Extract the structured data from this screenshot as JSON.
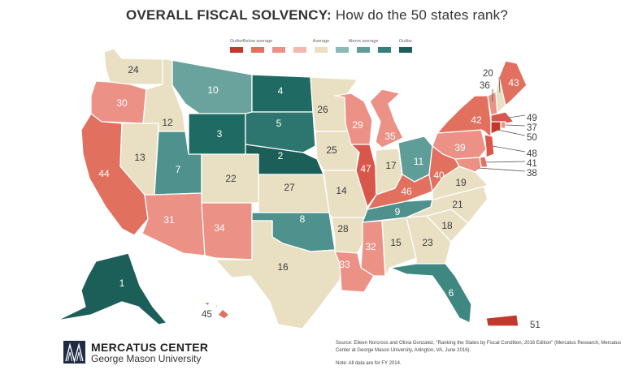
{
  "title": {
    "bold": "OVERALL FISCAL SOLVENCY:",
    "rest": "How do the 50 states rank?"
  },
  "legend": [
    {
      "label": "Outlier",
      "color": "#c0392b"
    },
    {
      "label": "Below average",
      "color": "#e2705f"
    },
    {
      "label": "",
      "color": "#eb9186"
    },
    {
      "label": "",
      "color": "#f3b9ae"
    },
    {
      "label": "Average",
      "color": "#e9dfc2"
    },
    {
      "label": "",
      "color": "#8cb9b5"
    },
    {
      "label": "Above average",
      "color": "#5e9d98"
    },
    {
      "label": "",
      "color": "#357f79"
    },
    {
      "label": "Outlier",
      "color": "#1c5e58"
    }
  ],
  "states": {
    "WA": {
      "rank": "24",
      "color": "#e9dfc2"
    },
    "OR": {
      "rank": "30",
      "color": "#eb9186"
    },
    "CA": {
      "rank": "44",
      "color": "#e2705f"
    },
    "NV": {
      "rank": "13",
      "color": "#e9dfc2"
    },
    "ID": {
      "rank": "12",
      "color": "#e9dfc2"
    },
    "MT": {
      "rank": "10",
      "color": "#6aa39e"
    },
    "WY": {
      "rank": "3",
      "color": "#1f6b64"
    },
    "UT": {
      "rank": "7",
      "color": "#4f928d"
    },
    "AZ": {
      "rank": "31",
      "color": "#eb9186"
    },
    "CO": {
      "rank": "22",
      "color": "#e9dfc2"
    },
    "NM": {
      "rank": "34",
      "color": "#eb9186"
    },
    "ND": {
      "rank": "4",
      "color": "#1f6b64"
    },
    "SD": {
      "rank": "5",
      "color": "#2c766f"
    },
    "NE": {
      "rank": "2",
      "color": "#1c5e58"
    },
    "KS": {
      "rank": "27",
      "color": "#e9dfc2"
    },
    "OK": {
      "rank": "8",
      "color": "#4f928d"
    },
    "TX": {
      "rank": "16",
      "color": "#e9dfc2"
    },
    "MN": {
      "rank": "26",
      "color": "#e9dfc2"
    },
    "IA": {
      "rank": "25",
      "color": "#e9dfc2"
    },
    "MO": {
      "rank": "14",
      "color": "#e9dfc2"
    },
    "AR": {
      "rank": "28",
      "color": "#e9dfc2"
    },
    "LA": {
      "rank": "33",
      "color": "#eb9186"
    },
    "WI": {
      "rank": "29",
      "color": "#eb9186"
    },
    "IL": {
      "rank": "47",
      "color": "#d9574a"
    },
    "MI": {
      "rank": "35",
      "color": "#eb9186"
    },
    "IN": {
      "rank": "17",
      "color": "#e9dfc2"
    },
    "OH": {
      "rank": "11",
      "color": "#5e9d98"
    },
    "KY": {
      "rank": "46",
      "color": "#e2705f"
    },
    "TN": {
      "rank": "9",
      "color": "#4f928d"
    },
    "MS": {
      "rank": "32",
      "color": "#eb9186"
    },
    "AL": {
      "rank": "15",
      "color": "#e9dfc2"
    },
    "GA": {
      "rank": "23",
      "color": "#e9dfc2"
    },
    "FL": {
      "rank": "6",
      "color": "#3f8882"
    },
    "SC": {
      "rank": "18",
      "color": "#e9dfc2"
    },
    "NC": {
      "rank": "21",
      "color": "#e9dfc2"
    },
    "VA": {
      "rank": "19",
      "color": "#e9dfc2"
    },
    "WV": {
      "rank": "40",
      "color": "#e2705f"
    },
    "PA": {
      "rank": "39",
      "color": "#eb9186"
    },
    "NY": {
      "rank": "42",
      "color": "#e2705f"
    },
    "ME": {
      "rank": "43",
      "color": "#e2705f"
    },
    "VT": {
      "rank": "36",
      "color": "#eb9186"
    },
    "NH": {
      "rank": "20",
      "color": "#e9dfc2"
    },
    "MA": {
      "rank": "49",
      "color": "#d9574a"
    },
    "RI": {
      "rank": "37",
      "color": "#eb9186"
    },
    "CT": {
      "rank": "50",
      "color": "#c0392b"
    },
    "NJ": {
      "rank": "48",
      "color": "#d9574a"
    },
    "DE": {
      "rank": "41",
      "color": "#e2705f"
    },
    "MD": {
      "rank": "38",
      "color": "#eb9186"
    },
    "AK": {
      "rank": "1",
      "color": "#1c5e58"
    },
    "HI": {
      "rank": "45",
      "color": "#e2705f"
    },
    "PR": {
      "rank": "51",
      "color": "#c0392b"
    }
  },
  "logo": {
    "line1": "MERCATUS CENTER",
    "line2": "George Mason University"
  },
  "source": "Source: Eileen Norcross and Olivia Gonzalez, \"Ranking the States by Fiscal Condition, 2016 Edition\" (Mercatus Research, Mercatus Center at George Mason University, Arlington, VA, June 2016).",
  "note": "Note: All data are for FY 2014."
}
